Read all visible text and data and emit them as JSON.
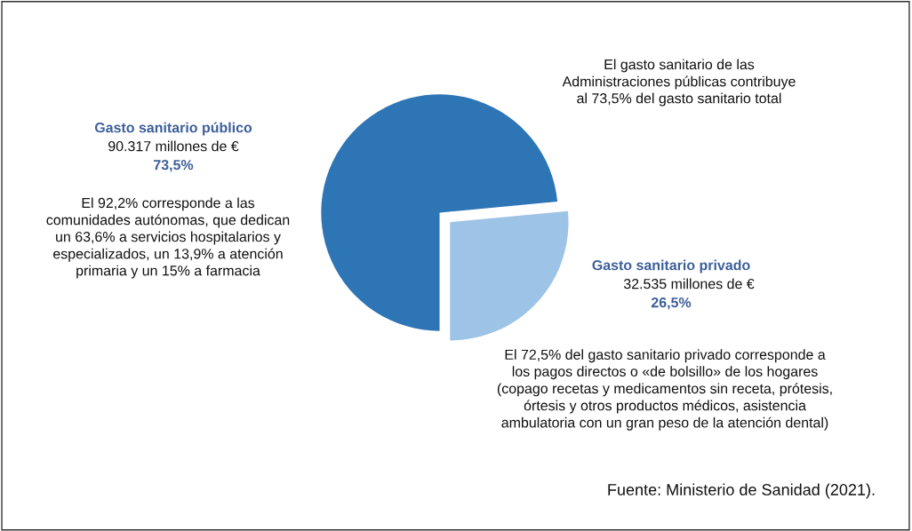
{
  "chart_data": {
    "type": "pie",
    "categories": [
      "Gasto sanitario público",
      "Gasto sanitario privado"
    ],
    "values": [
      73.5,
      26.5
    ],
    "colors": [
      "#2e75b6",
      "#9dc3e6"
    ],
    "value_labels": [
      "90.317 millones de €\n73,5%",
      "32.535 millones de €\n26,5%"
    ],
    "annotations": [
      "El gasto sanitario de las\nAdministraciones públicas contribuye\nal 73,5% del gasto sanitario total",
      "El 92,2% corresponde a las\ncomunidades autónomas, que dedican\nun 63,6% a servicios hospitalarios y\nespecializados, un 13,9% a atención\nprimaria y un 15% a farmacia",
      "El 72,5% del gasto sanitario privado corresponde a\nlos pagos directos o «de bolsillo» de los hogares\n(copago recetas y medicamentos sin receta, prótesis,\nórtesis y otros productos médicos, asistencia\nambulatoria con un gran peso de la atención dental)",
      "Fuente: Ministerio de Sanidad (2021)."
    ]
  }
}
